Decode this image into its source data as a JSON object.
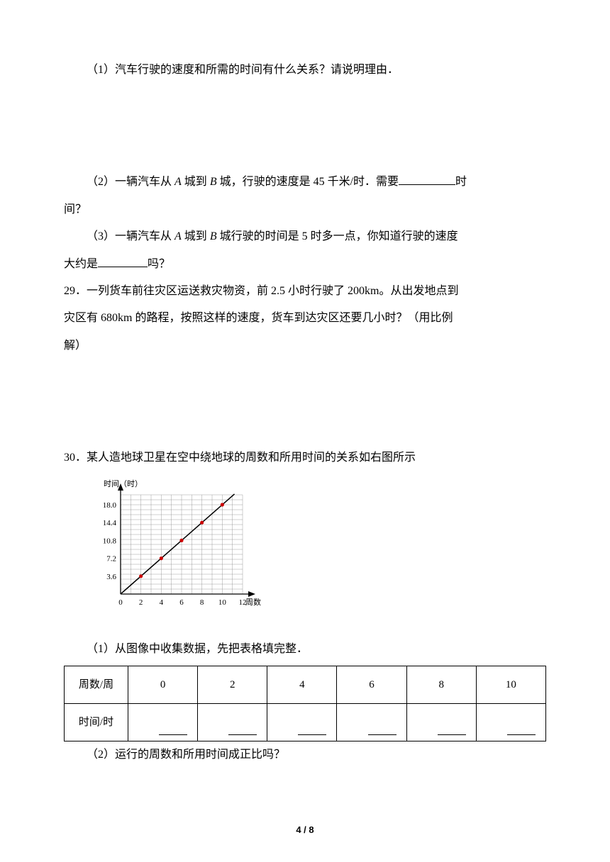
{
  "q28": {
    "p1": "（1）汽车行驶的速度和所需的时间有什么关系？请说明理由．",
    "p2_a": "（2）一辆汽车从 ",
    "p2_A": "A",
    "p2_b": " 城到 ",
    "p2_B": "B",
    "p2_c": " 城，行驶的速度是 45 千米/时．需要",
    "p2_d": "时",
    "p2_e": "间？",
    "p3_a": "（3）一辆汽车从 ",
    "p3_A": "A",
    "p3_b": " 城到 ",
    "p3_B": "B",
    "p3_c": " 城行驶的时间是 5 时多一点，你知道行驶的速度",
    "p3_d": "大约是",
    "p3_e": "吗？"
  },
  "q29": {
    "t1": "29．一列货车前往灾区运送救灾物资，前 2.5 小时行驶了 200km。从出发地点到",
    "t2": "灾区有 680km 的路程，按照这样的速度，货车到达灾区还要几小时？（用比例",
    "t3": "解）"
  },
  "q30": {
    "title": "30．某人造地球卫星在空中绕地球的周数和所用时间的关系如右图所示",
    "sub1": "（1）从图像中收集数据，先把表格填完整．",
    "sub2": "（2）运行的周数和所用时间成正比吗？",
    "table": {
      "r1": [
        "周数/周",
        "0",
        "2",
        "4",
        "6",
        "8",
        "10"
      ],
      "r2_label": "时间/时"
    }
  },
  "chart": {
    "y_label": "时间（时）",
    "x_label": "周数",
    "y_ticks": [
      "3.6",
      "7.2",
      "10.8",
      "14.4",
      "18.0"
    ],
    "x_ticks": [
      "0",
      "2",
      "4",
      "6",
      "8",
      "10",
      "12"
    ],
    "grid_color": "#888888",
    "line_color": "#000000",
    "point_color": "#cc0000",
    "data": [
      {
        "x": 2,
        "y": 3.6
      },
      {
        "x": 4,
        "y": 7.2
      },
      {
        "x": 6,
        "y": 10.8
      },
      {
        "x": 8,
        "y": 14.4
      },
      {
        "x": 10,
        "y": 18.0
      }
    ],
    "x_domain": [
      0,
      12
    ],
    "y_domain": [
      0,
      20
    ],
    "grid_x_step": 1,
    "grid_y_step": 1
  },
  "page": "4 / 8"
}
